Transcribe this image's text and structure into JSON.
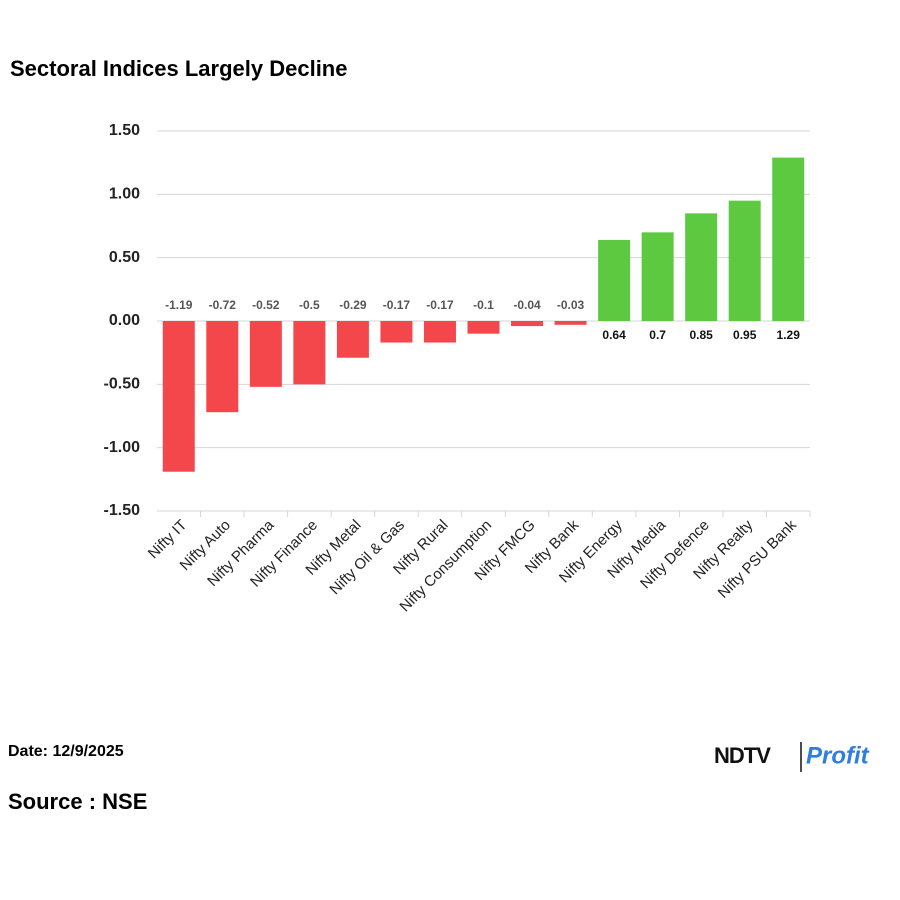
{
  "chart_data": {
    "type": "bar",
    "title": "Sectoral Indices Largely Decline",
    "categories": [
      "Nifty IT",
      "Nifty Auto",
      "Nifty Pharma",
      "Nifty Finance",
      "Nifty Metal",
      "Nifty Oil & Gas",
      "Nifty Rural",
      "Nifty Consumption",
      "Nifty FMCG",
      "Nifty Bank",
      "Nifty Energy",
      "Nifty Media",
      "Nifty Defence",
      "Nifty Realty",
      "Nifty PSU Bank"
    ],
    "values": [
      -1.19,
      -0.72,
      -0.52,
      -0.5,
      -0.29,
      -0.17,
      -0.17,
      -0.1,
      -0.04,
      -0.03,
      0.64,
      0.7,
      0.85,
      0.95,
      1.29
    ],
    "colors": {
      "negative": "#f4474c",
      "positive": "#5cc940"
    },
    "ylim": [
      -1.5,
      1.5
    ],
    "yticks": [
      {
        "value": -1.5,
        "label": "-1.50"
      },
      {
        "value": -1,
        "label": "-1.00"
      },
      {
        "value": -0.5,
        "label": "-0.50"
      },
      {
        "value": 0,
        "label": "0.00"
      },
      {
        "value": 0.5,
        "label": "0.50"
      },
      {
        "value": 1,
        "label": "1.00"
      },
      {
        "value": 1.5,
        "label": "1.50"
      }
    ],
    "grid": true
  },
  "footer": {
    "date": "Date: 12/9/2025",
    "source": "Source : NSE",
    "logo": [
      "NDTV",
      "Profit"
    ]
  }
}
